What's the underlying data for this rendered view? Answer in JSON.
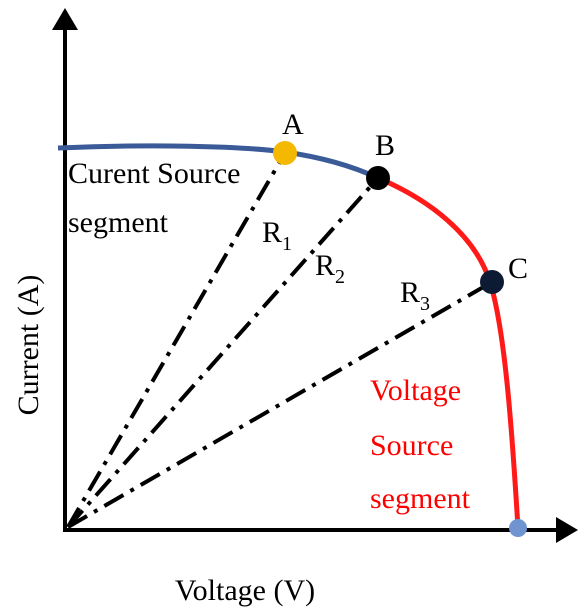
{
  "points": [
    {
      "label": "A"
    },
    {
      "label": "B"
    },
    {
      "label": "C"
    }
  ],
  "current_source_label": [
    "Curent Source",
    "segment"
  ],
  "voltage_source_label": [
    "Voltage",
    "Source",
    "segment"
  ],
  "resistances": [
    {
      "symbol": "R",
      "subscript": "1"
    },
    {
      "symbol": "R",
      "subscript": "2"
    },
    {
      "symbol": "R",
      "subscript": "3"
    }
  ],
  "axes": {
    "x_label": "Voltage (V)",
    "y_label": "Current (A)"
  }
}
